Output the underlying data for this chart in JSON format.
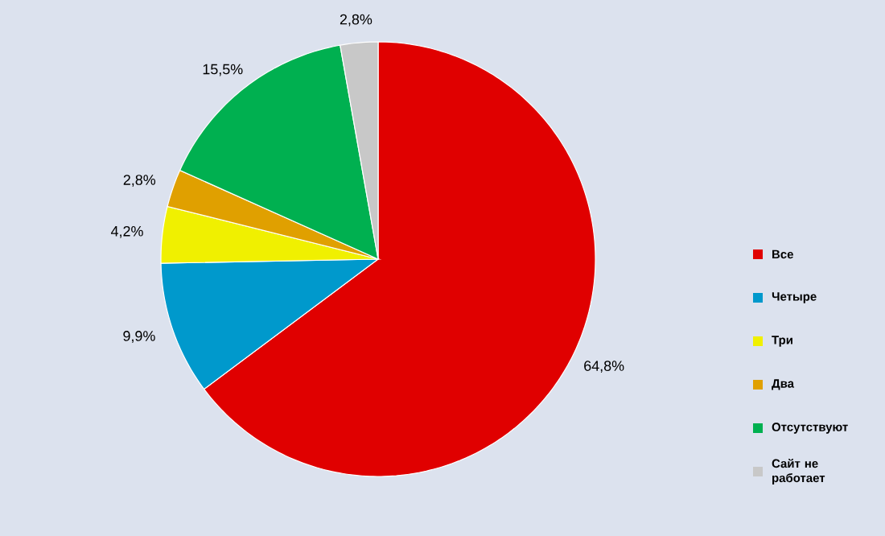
{
  "chart_data": {
    "type": "pie",
    "categories": [
      "Все",
      "Четыре",
      "Три",
      "Два",
      "Отсутствуют",
      "Сайт не работает"
    ],
    "values": [
      64.8,
      9.9,
      4.2,
      2.8,
      15.5,
      2.8
    ],
    "value_labels": [
      "64,8%",
      "9,9%",
      "4,2%",
      "2,8%",
      "15,5%",
      "2,8%"
    ],
    "colors": [
      "#e00000",
      "#0099cc",
      "#f0f000",
      "#e0a000",
      "#00b050",
      "#c8c8c8"
    ],
    "legend": "right"
  }
}
